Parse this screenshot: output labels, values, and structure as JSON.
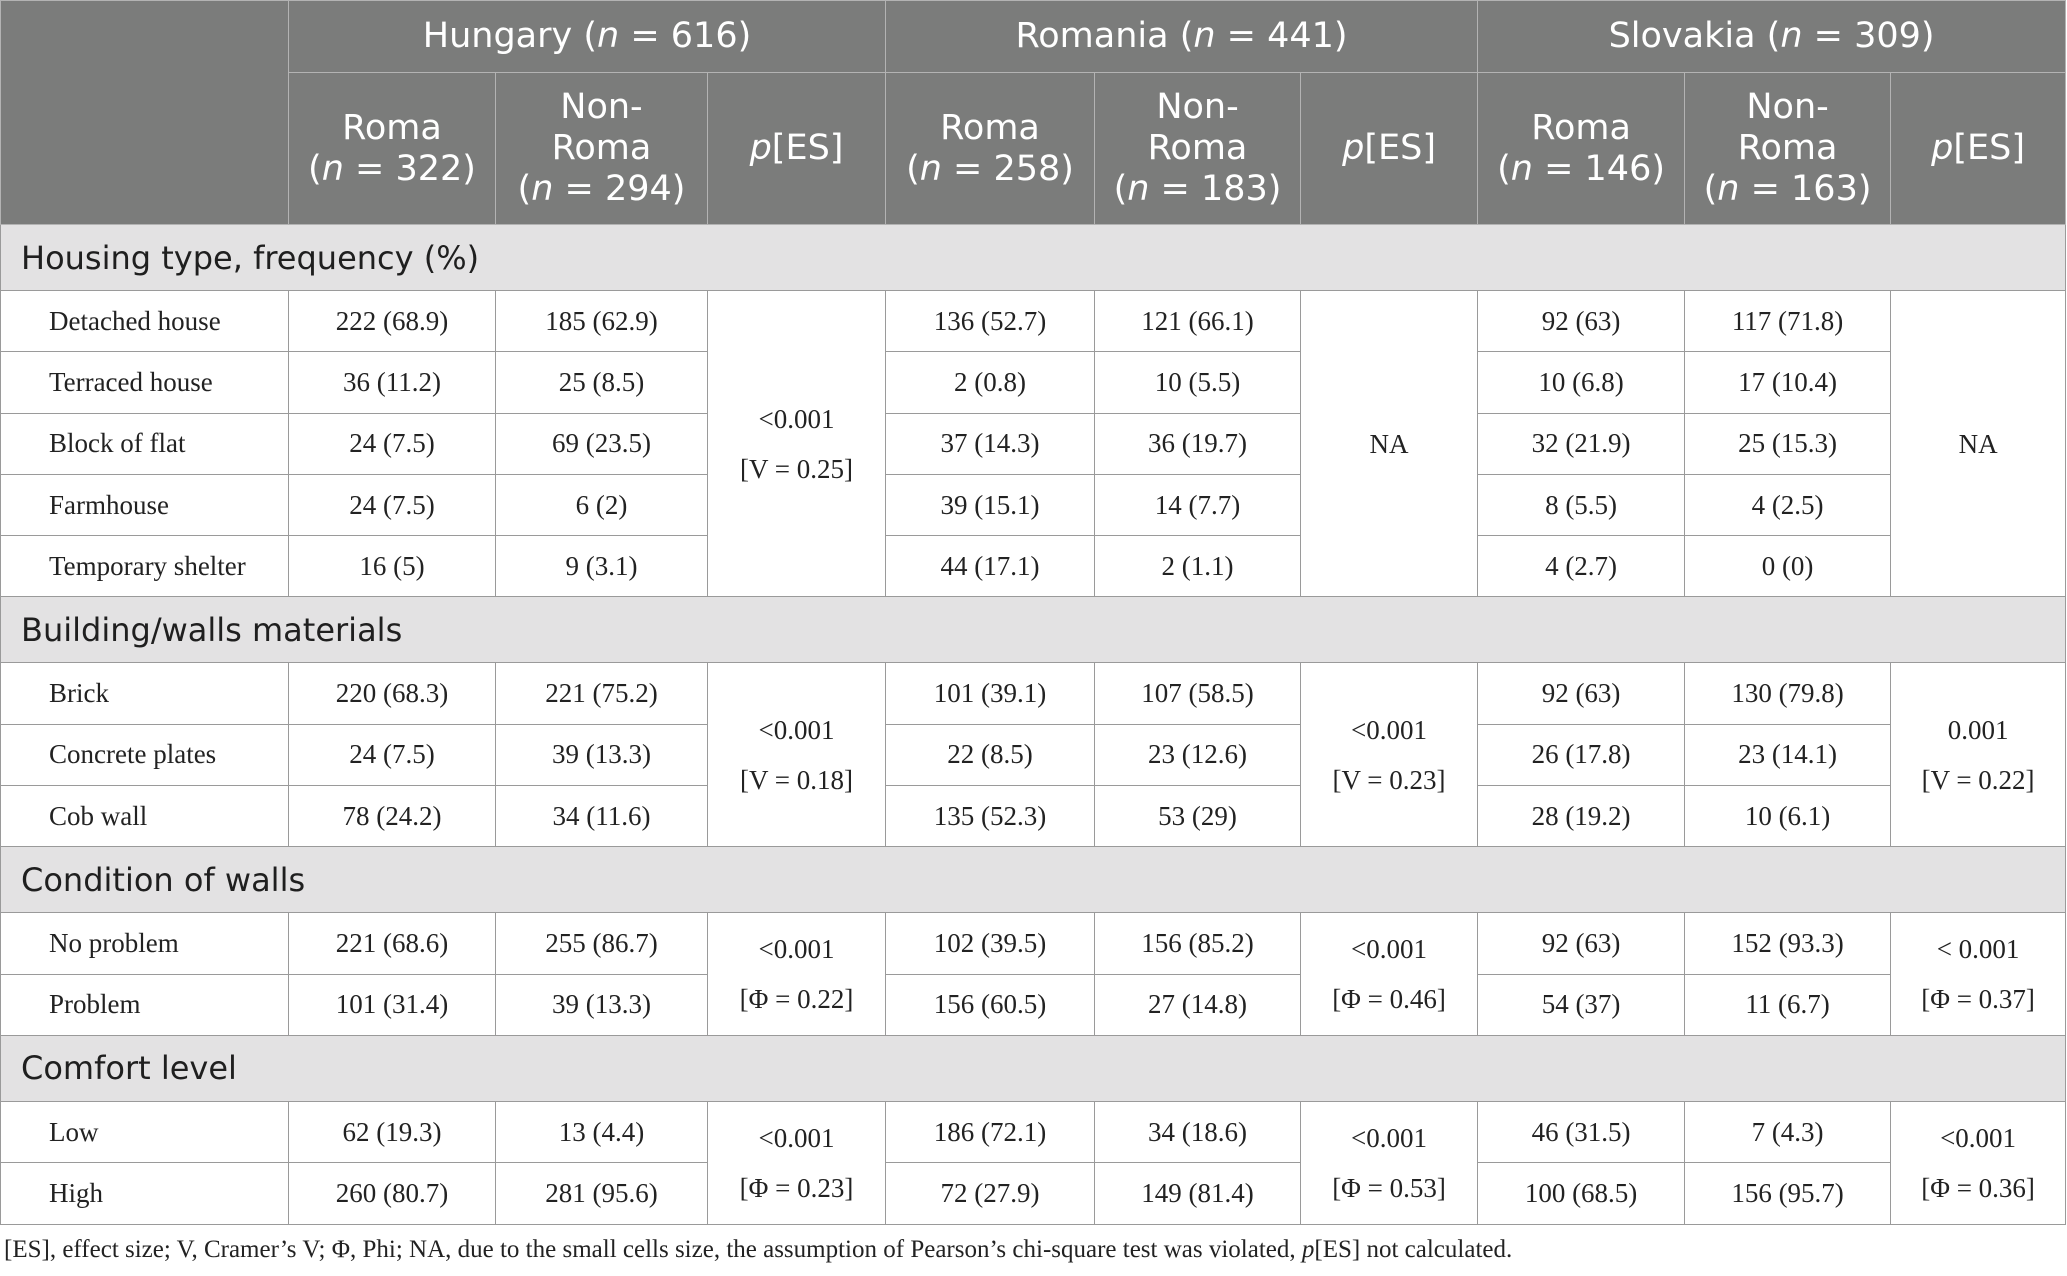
{
  "header": {
    "countries": [
      {
        "name": "Hungary",
        "n_label": "n",
        "n_value": " = 616"
      },
      {
        "name": "Romania",
        "n_label": "n",
        "n_value": " = 441"
      },
      {
        "name": "Slovakia",
        "n_label": "n",
        "n_value": " = 309"
      }
    ],
    "subheaders": [
      {
        "line1": "Roma",
        "line2": "(",
        "n": "n",
        "rest": " = 322)"
      },
      {
        "line1": "Non-",
        "line1b": "Roma",
        "line2": "(",
        "n": "n",
        "rest": " = 294)"
      },
      {
        "p": "p",
        "rest": "[ES]"
      },
      {
        "line1": "Roma",
        "line2": "(",
        "n": "n",
        "rest": " = 258)"
      },
      {
        "line1": "Non-",
        "line1b": "Roma",
        "line2": "(",
        "n": "n",
        "rest": " = 183)"
      },
      {
        "p": "p",
        "rest": "[ES]"
      },
      {
        "line1": "Roma",
        "line2": "(",
        "n": "n",
        "rest": " = 146)"
      },
      {
        "line1": "Non-",
        "line1b": "Roma",
        "line2": "(",
        "n": "n",
        "rest": " = 163)"
      },
      {
        "p": "p",
        "rest": "[ES]"
      }
    ]
  },
  "sections": [
    {
      "title": "Housing type, frequency (%)",
      "rows": [
        {
          "label": "Detached house",
          "cells": [
            "222 (68.9)",
            "185 (62.9)",
            "136 (52.7)",
            "121 (66.1)",
            "92 (63)",
            "117 (71.8)"
          ]
        },
        {
          "label": "Terraced house",
          "cells": [
            "36 (11.2)",
            "25 (8.5)",
            "2 (0.8)",
            "10 (5.5)",
            "10 (6.8)",
            "17 (10.4)"
          ]
        },
        {
          "label": "Block of flat",
          "cells": [
            "24 (7.5)",
            "69 (23.5)",
            "37 (14.3)",
            "36 (19.7)",
            "32 (21.9)",
            "25 (15.3)"
          ]
        },
        {
          "label": "Farmhouse",
          "cells": [
            "24 (7.5)",
            "6 (2)",
            "39 (15.1)",
            "14 (7.7)",
            "8 (5.5)",
            "4 (2.5)"
          ]
        },
        {
          "label": "Temporary shelter",
          "cells": [
            "16 (5)",
            "9 (3.1)",
            "44 (17.1)",
            "2 (1.1)",
            "4 (2.7)",
            "0 (0)"
          ]
        }
      ],
      "stats": [
        {
          "p": "<0.001",
          "es": "[V = 0.25]"
        },
        {
          "p": "NA",
          "es": ""
        },
        {
          "p": "NA",
          "es": ""
        }
      ]
    },
    {
      "title": "Building/walls materials",
      "rows": [
        {
          "label": "Brick",
          "cells": [
            "220 (68.3)",
            "221 (75.2)",
            "101 (39.1)",
            "107 (58.5)",
            "92 (63)",
            "130 (79.8)"
          ]
        },
        {
          "label": "Concrete plates",
          "cells": [
            "24 (7.5)",
            "39 (13.3)",
            "22 (8.5)",
            "23 (12.6)",
            "26 (17.8)",
            "23 (14.1)"
          ]
        },
        {
          "label": "Cob wall",
          "cells": [
            "78 (24.2)",
            "34 (11.6)",
            "135 (52.3)",
            "53 (29)",
            "28 (19.2)",
            "10 (6.1)"
          ]
        }
      ],
      "stats": [
        {
          "p": "<0.001",
          "es": "[V = 0.18]"
        },
        {
          "p": "<0.001",
          "es": "[V = 0.23]"
        },
        {
          "p": "0.001",
          "es": "[V = 0.22]"
        }
      ]
    },
    {
      "title": "Condition of walls",
      "rows": [
        {
          "label": "No problem",
          "cells": [
            "221 (68.6)",
            "255 (86.7)",
            "102 (39.5)",
            "156 (85.2)",
            "92 (63)",
            "152 (93.3)"
          ]
        },
        {
          "label": "Problem",
          "cells": [
            "101 (31.4)",
            "39 (13.3)",
            "156 (60.5)",
            "27 (14.8)",
            "54 (37)",
            "11 (6.7)"
          ]
        }
      ],
      "stats": [
        {
          "p": "<0.001",
          "es": "[Φ = 0.22]"
        },
        {
          "p": "<0.001",
          "es": "[Φ = 0.46]"
        },
        {
          "p": "< 0.001",
          "es": "[Φ = 0.37]"
        }
      ]
    },
    {
      "title": "Comfort level",
      "rows": [
        {
          "label": "Low",
          "cells": [
            "62 (19.3)",
            "13 (4.4)",
            "186 (72.1)",
            "34 (18.6)",
            "46 (31.5)",
            "7 (4.3)"
          ]
        },
        {
          "label": "High",
          "cells": [
            "260 (80.7)",
            "281 (95.6)",
            "72 (27.9)",
            "149 (81.4)",
            "100 (68.5)",
            "156 (95.7)"
          ]
        }
      ],
      "stats": [
        {
          "p": "<0.001",
          "es": "[Φ = 0.23]"
        },
        {
          "p": "<0.001",
          "es": "[Φ = 0.53]"
        },
        {
          "p": "<0.001",
          "es": "[Φ = 0.36]"
        }
      ]
    }
  ],
  "footnote": {
    "text": "[ES], effect size; V, Cramer’s V; Φ, Phi; NA, due to the small cells size, the assumption of Pearson’s chi-square test was violated, ",
    "p": "p",
    "rest": "[ES] not calculated."
  }
}
